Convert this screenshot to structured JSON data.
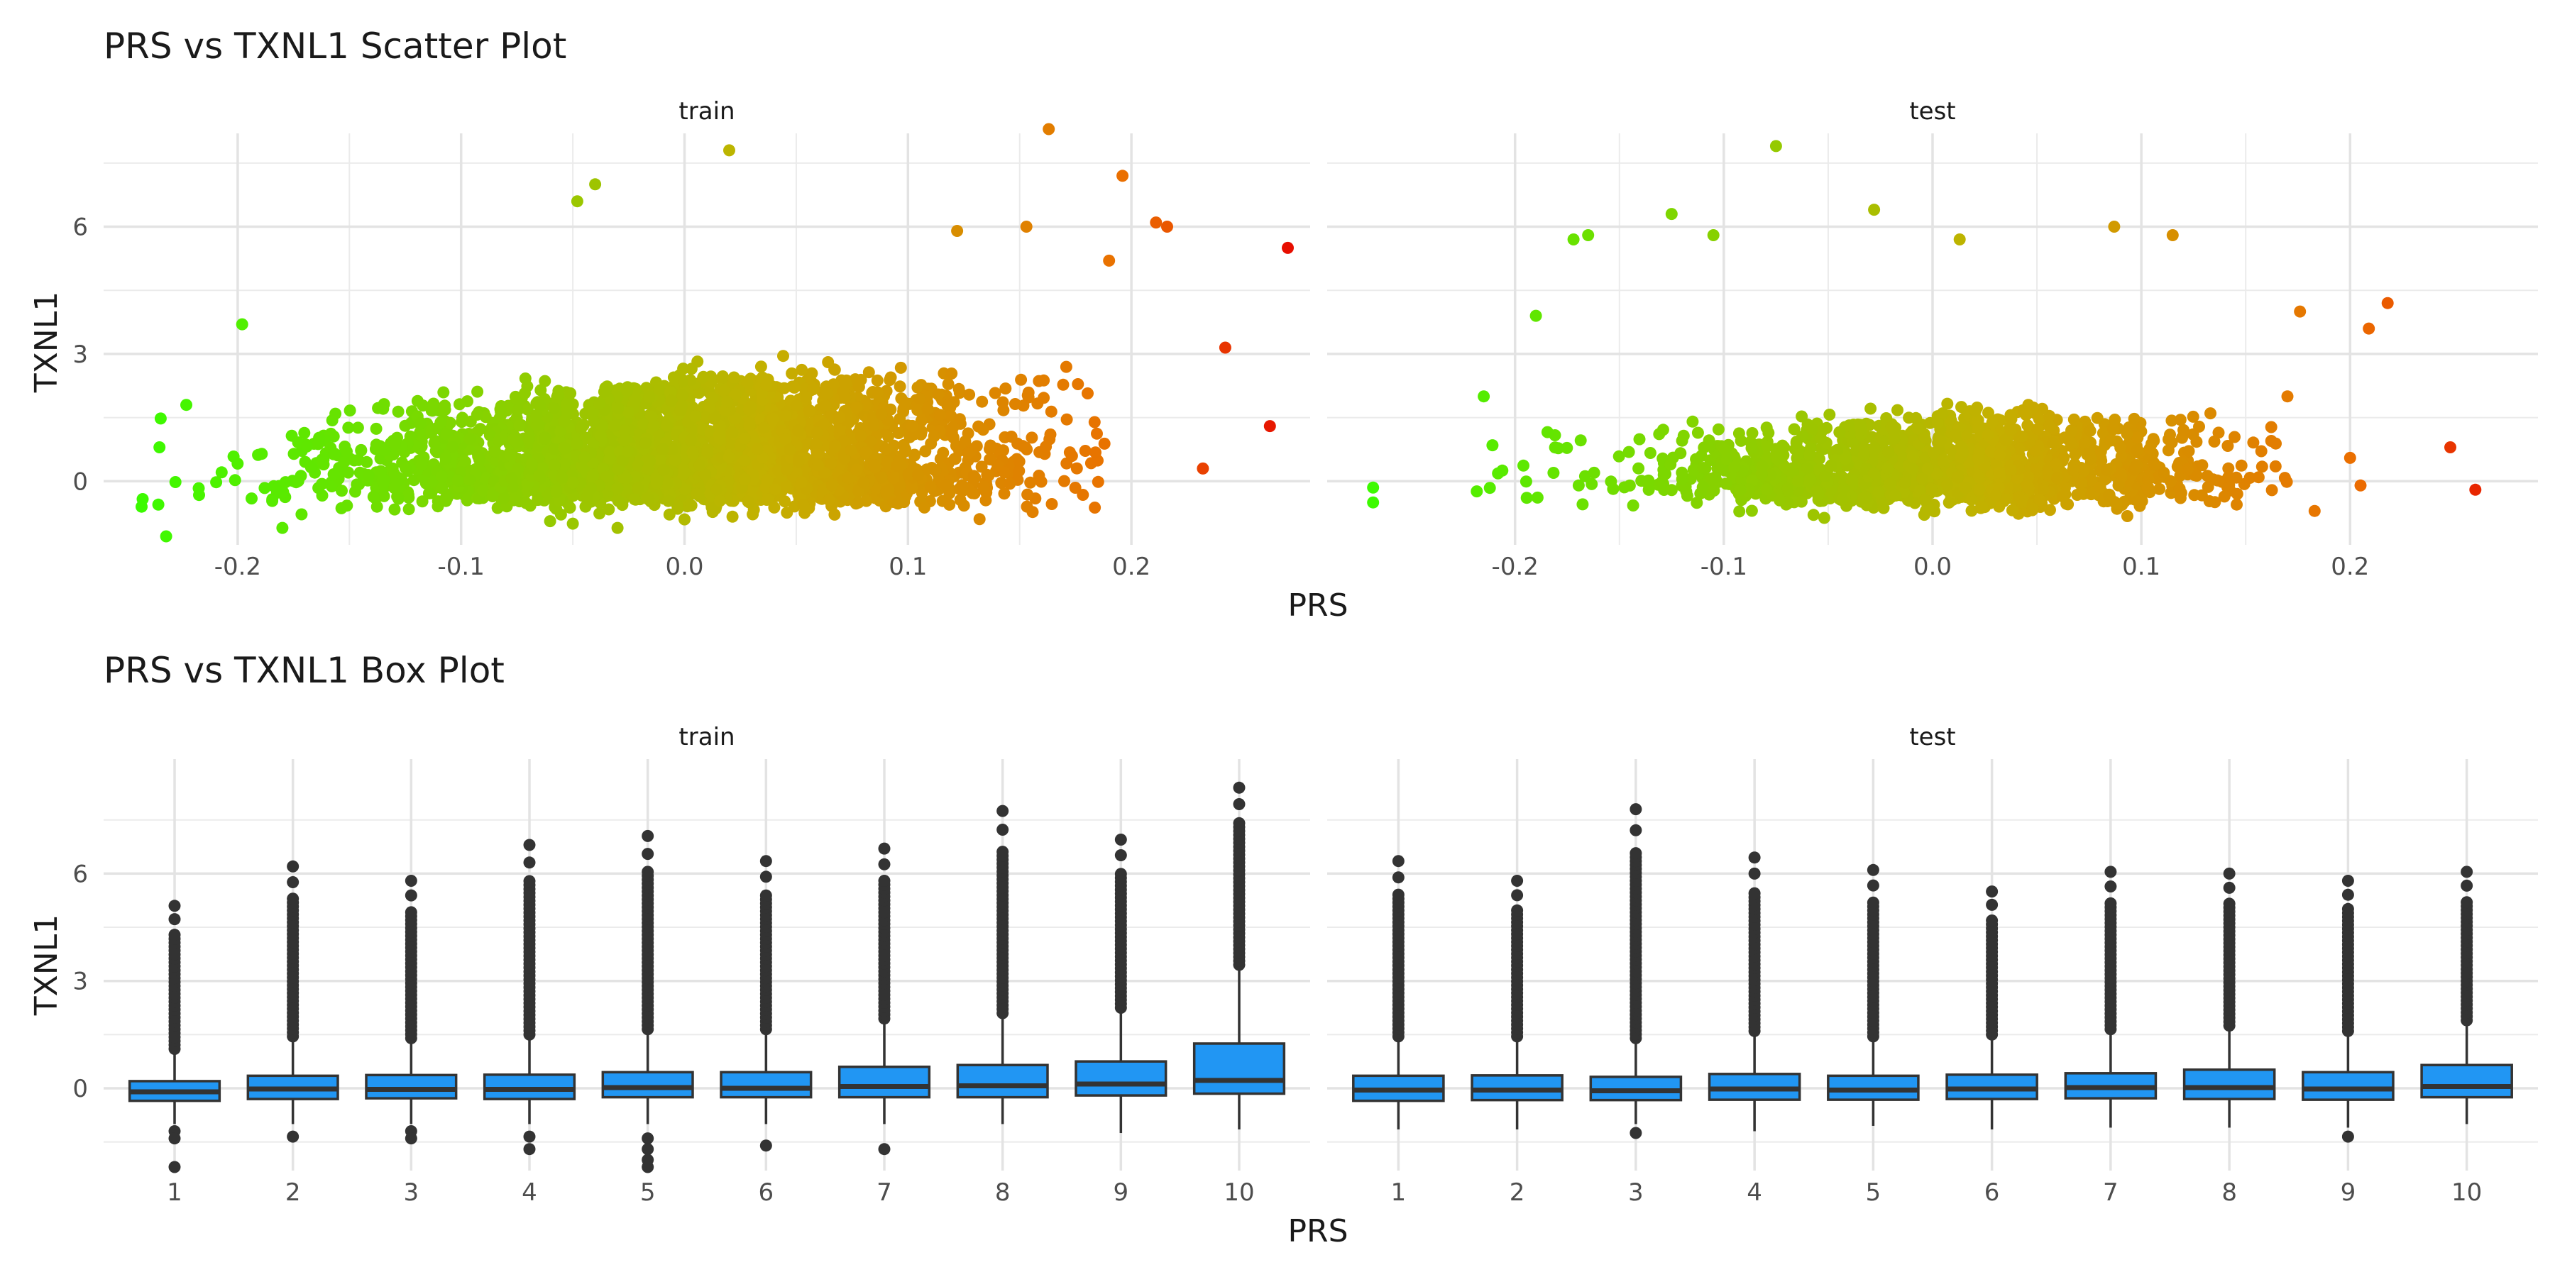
{
  "figure": {
    "scatter_title": "PRS vs TXNL1 Scatter Plot",
    "box_title": "PRS vs TXNL1 Box Plot",
    "xlabel": "PRS",
    "ylabel": "TXNL1",
    "facet_labels": [
      "train",
      "test"
    ]
  },
  "colors": {
    "gradient_low": "#33ff00",
    "gradient_mid": "#c4b000",
    "gradient_high": "#e60000",
    "box_fill": "#2196f3",
    "box_line": "#333333",
    "grid": "#ebebeb",
    "text": "#4d4d4d",
    "title": "#1a1a1a"
  },
  "chart_data": [
    {
      "type": "scatter",
      "title": "PRS vs TXNL1 Scatter Plot",
      "xlabel": "PRS",
      "ylabel": "TXNL1",
      "color_encoding": "PRS (gradient green to red)",
      "grid": true,
      "y_ticks": [
        0,
        3,
        6
      ],
      "ylim": [
        -1.5,
        8.2
      ],
      "panels": [
        {
          "facet": "train",
          "x_ticks": [
            -0.2,
            -0.1,
            0.0,
            0.1,
            0.2
          ],
          "xlim": [
            -0.26,
            0.28
          ],
          "cloud": {
            "n": 3000,
            "x_mean": 0.0,
            "x_sd": 0.075,
            "x_min": -0.245,
            "x_max": 0.19,
            "y_min": -1.1,
            "y_base": -0.2,
            "y_slope": 6.0,
            "y_spread": 1.6
          },
          "points": [
            [
              0.27,
              5.5
            ],
            [
              0.262,
              1.3
            ],
            [
              0.242,
              3.15
            ],
            [
              0.232,
              0.3
            ],
            [
              0.216,
              6.0
            ],
            [
              0.211,
              6.1
            ],
            [
              0.196,
              7.2
            ],
            [
              0.163,
              8.3
            ],
            [
              0.02,
              7.8
            ],
            [
              -0.04,
              7.0
            ],
            [
              -0.048,
              6.6
            ],
            [
              -0.18,
              -1.1
            ],
            [
              -0.198,
              3.7
            ],
            [
              -0.223,
              1.8
            ],
            [
              -0.235,
              0.8
            ],
            [
              -0.232,
              -1.3
            ],
            [
              -0.243,
              -0.6
            ],
            [
              -0.03,
              -1.1
            ],
            [
              -0.05,
              -1.0
            ],
            [
              0.0,
              -0.9
            ],
            [
              0.122,
              5.9
            ],
            [
              0.153,
              6.0
            ],
            [
              0.19,
              5.2
            ]
          ]
        },
        {
          "facet": "test",
          "x_ticks": [
            -0.2,
            -0.1,
            0.0,
            0.1,
            0.2
          ],
          "xlim": [
            -0.29,
            0.29
          ],
          "cloud": {
            "n": 1500,
            "x_mean": 0.0,
            "x_sd": 0.068,
            "x_min": -0.23,
            "x_max": 0.17,
            "y_min": -0.95,
            "y_base": -0.25,
            "y_slope": 2.4,
            "y_spread": 1.3
          },
          "points": [
            [
              0.26,
              -0.2
            ],
            [
              0.248,
              0.8
            ],
            [
              0.218,
              4.2
            ],
            [
              0.209,
              3.6
            ],
            [
              0.205,
              -0.1
            ],
            [
              0.2,
              0.55
            ],
            [
              0.176,
              4.0
            ],
            [
              0.17,
              2.0
            ],
            [
              0.183,
              -0.7
            ],
            [
              -0.075,
              7.9
            ],
            [
              -0.125,
              6.3
            ],
            [
              -0.105,
              5.8
            ],
            [
              -0.165,
              5.8
            ],
            [
              -0.172,
              5.7
            ],
            [
              -0.19,
              3.9
            ],
            [
              -0.268,
              -0.15
            ],
            [
              -0.268,
              -0.5
            ],
            [
              -0.215,
              2.0
            ],
            [
              -0.028,
              6.4
            ],
            [
              0.087,
              6.0
            ],
            [
              0.115,
              5.8
            ],
            [
              0.013,
              5.7
            ]
          ]
        }
      ]
    },
    {
      "type": "box",
      "title": "PRS vs TXNL1 Box Plot",
      "xlabel": "PRS",
      "ylabel": "TXNL1",
      "categories": [
        "1",
        "2",
        "3",
        "4",
        "5",
        "6",
        "7",
        "8",
        "9",
        "10"
      ],
      "y_ticks": [
        0,
        3,
        6
      ],
      "ylim": [
        -2.3,
        9.2
      ],
      "grid": true,
      "panels": [
        {
          "facet": "train",
          "boxes": [
            {
              "q1": -0.35,
              "median": -0.1,
              "q3": 0.2,
              "whisker_low": -1.0,
              "whisker_high": 0.95,
              "outlier_high": 5.1,
              "outliers_low": [
                -1.2,
                -1.4,
                -2.2
              ]
            },
            {
              "q1": -0.3,
              "median": -0.02,
              "q3": 0.35,
              "whisker_low": -1.0,
              "whisker_high": 1.3,
              "outlier_high": 6.2,
              "outliers_low": [
                -1.35
              ]
            },
            {
              "q1": -0.28,
              "median": -0.03,
              "q3": 0.37,
              "whisker_low": -1.0,
              "whisker_high": 1.25,
              "outlier_high": 5.8,
              "outliers_low": [
                -1.2,
                -1.4
              ]
            },
            {
              "q1": -0.3,
              "median": -0.03,
              "q3": 0.38,
              "whisker_low": -1.0,
              "whisker_high": 1.35,
              "outlier_high": 6.8,
              "outliers_low": [
                -1.35,
                -1.7
              ]
            },
            {
              "q1": -0.25,
              "median": 0.02,
              "q3": 0.45,
              "whisker_low": -1.0,
              "whisker_high": 1.5,
              "outlier_high": 7.05,
              "outliers_low": [
                -1.4,
                -1.7,
                -2.0,
                -2.2
              ]
            },
            {
              "q1": -0.25,
              "median": 0.0,
              "q3": 0.45,
              "whisker_low": -1.0,
              "whisker_high": 1.5,
              "outlier_high": 6.35,
              "outliers_low": [
                -1.6
              ]
            },
            {
              "q1": -0.25,
              "median": 0.05,
              "q3": 0.6,
              "whisker_low": -1.0,
              "whisker_high": 1.8,
              "outlier_high": 6.7,
              "outliers_low": [
                -1.7
              ]
            },
            {
              "q1": -0.25,
              "median": 0.07,
              "q3": 0.65,
              "whisker_low": -1.0,
              "whisker_high": 1.95,
              "outlier_high": 7.75,
              "outliers_low": []
            },
            {
              "q1": -0.2,
              "median": 0.12,
              "q3": 0.75,
              "whisker_low": -1.25,
              "whisker_high": 2.1,
              "outlier_high": 6.95,
              "outliers_low": []
            },
            {
              "q1": -0.15,
              "median": 0.22,
              "q3": 1.25,
              "whisker_low": -1.15,
              "whisker_high": 3.3,
              "outlier_high": 8.4,
              "outliers_low": []
            }
          ]
        },
        {
          "facet": "test",
          "boxes": [
            {
              "q1": -0.35,
              "median": -0.05,
              "q3": 0.35,
              "whisker_low": -1.15,
              "whisker_high": 1.3,
              "outlier_high": 6.35,
              "outliers_low": []
            },
            {
              "q1": -0.33,
              "median": -0.05,
              "q3": 0.36,
              "whisker_low": -1.15,
              "whisker_high": 1.3,
              "outlier_high": 5.8,
              "outliers_low": []
            },
            {
              "q1": -0.33,
              "median": -0.07,
              "q3": 0.32,
              "whisker_low": -1.0,
              "whisker_high": 1.25,
              "outlier_high": 7.8,
              "outliers_low": [
                -1.25
              ]
            },
            {
              "q1": -0.32,
              "median": -0.02,
              "q3": 0.4,
              "whisker_low": -1.2,
              "whisker_high": 1.45,
              "outlier_high": 6.45,
              "outliers_low": []
            },
            {
              "q1": -0.32,
              "median": -0.05,
              "q3": 0.35,
              "whisker_low": -1.05,
              "whisker_high": 1.3,
              "outlier_high": 6.1,
              "outliers_low": []
            },
            {
              "q1": -0.3,
              "median": -0.02,
              "q3": 0.38,
              "whisker_low": -1.15,
              "whisker_high": 1.35,
              "outlier_high": 5.5,
              "outliers_low": []
            },
            {
              "q1": -0.28,
              "median": 0.02,
              "q3": 0.42,
              "whisker_low": -1.1,
              "whisker_high": 1.5,
              "outlier_high": 6.05,
              "outliers_low": []
            },
            {
              "q1": -0.3,
              "median": 0.02,
              "q3": 0.52,
              "whisker_low": -1.1,
              "whisker_high": 1.6,
              "outlier_high": 6.0,
              "outliers_low": []
            },
            {
              "q1": -0.32,
              "median": -0.02,
              "q3": 0.45,
              "whisker_low": -1.1,
              "whisker_high": 1.45,
              "outlier_high": 5.8,
              "outliers_low": [
                -1.35
              ]
            },
            {
              "q1": -0.25,
              "median": 0.05,
              "q3": 0.65,
              "whisker_low": -1.0,
              "whisker_high": 1.75,
              "outlier_high": 6.05,
              "outliers_low": []
            }
          ]
        }
      ]
    }
  ]
}
